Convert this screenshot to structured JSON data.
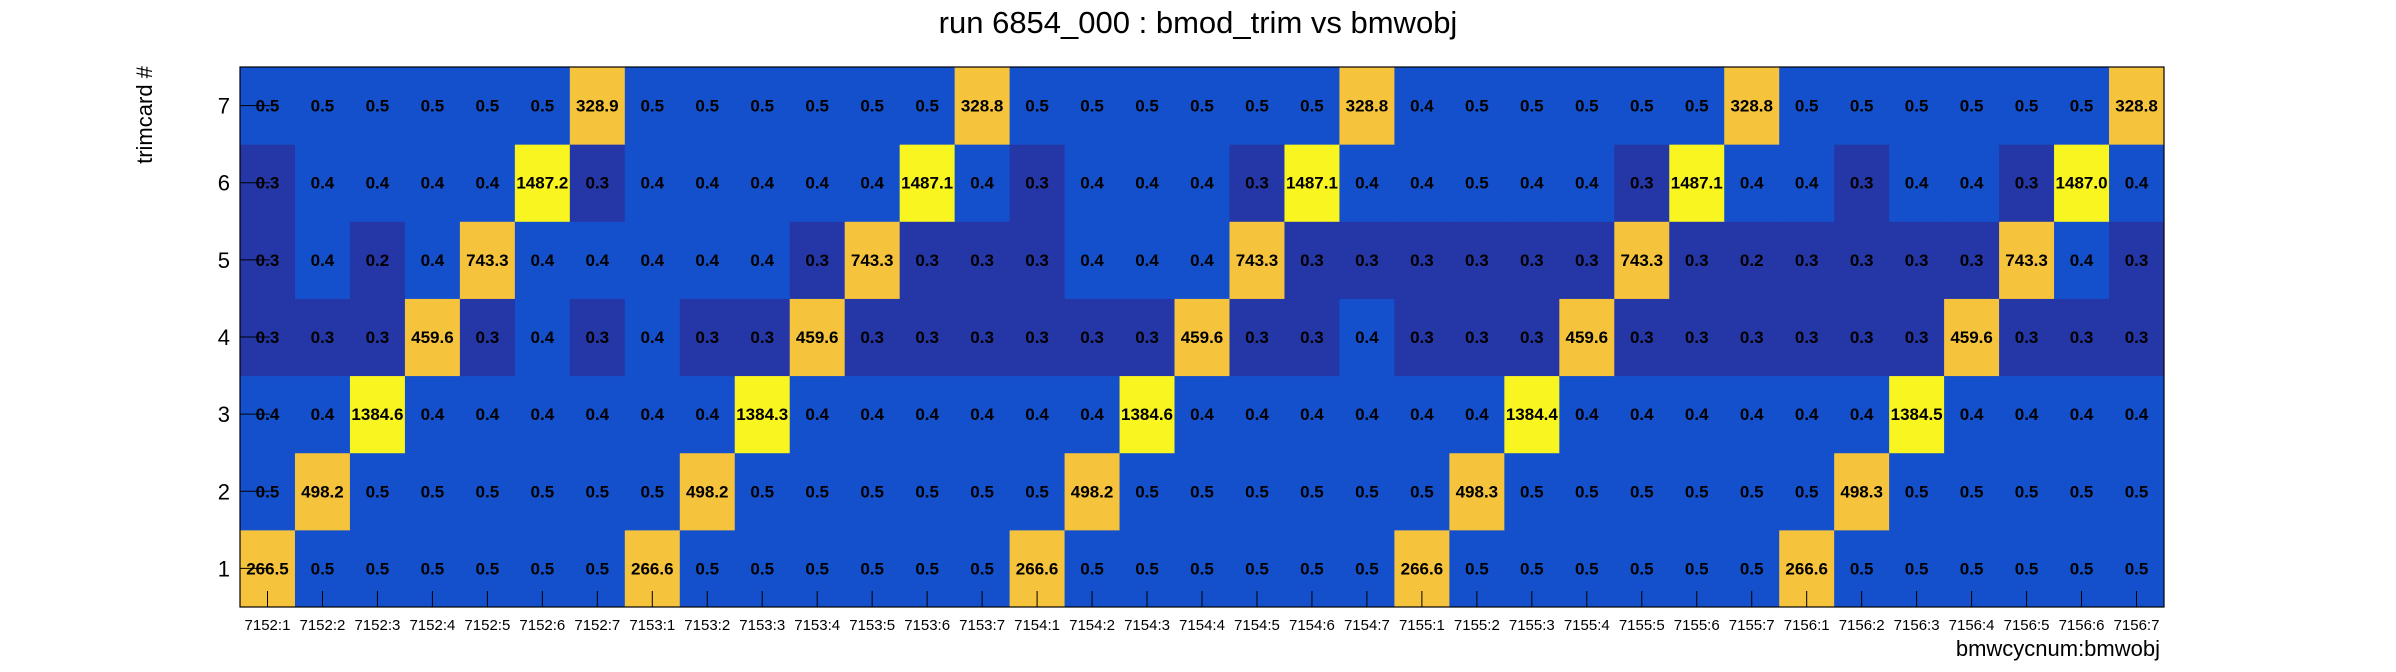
{
  "chart_data": {
    "type": "heatmap",
    "title": "run 6854_000 : bmod_trim vs bmwobj",
    "xlabel": "bmwcycnum:bmwobj",
    "ylabel": "trimcard #",
    "x_categories": [
      "7152:1",
      "7152:2",
      "7152:3",
      "7152:4",
      "7152:5",
      "7152:6",
      "7152:7",
      "7153:1",
      "7153:2",
      "7153:3",
      "7153:4",
      "7153:5",
      "7153:6",
      "7153:7",
      "7154:1",
      "7154:2",
      "7154:3",
      "7154:4",
      "7154:5",
      "7154:6",
      "7154:7",
      "7155:1",
      "7155:2",
      "7155:3",
      "7155:4",
      "7155:5",
      "7155:6",
      "7155:7",
      "7156:1",
      "7156:2",
      "7156:3",
      "7156:4",
      "7156:5",
      "7156:6",
      "7156:7"
    ],
    "y_categories": [
      "1",
      "2",
      "3",
      "4",
      "5",
      "6",
      "7"
    ],
    "values": [
      [
        "266.5",
        "0.5",
        "0.5",
        "0.5",
        "0.5",
        "0.5",
        "0.5",
        "266.6",
        "0.5",
        "0.5",
        "0.5",
        "0.5",
        "0.5",
        "0.5",
        "266.6",
        "0.5",
        "0.5",
        "0.5",
        "0.5",
        "0.5",
        "0.5",
        "266.6",
        "0.5",
        "0.5",
        "0.5",
        "0.5",
        "0.5",
        "0.5",
        "266.6",
        "0.5",
        "0.5",
        "0.5",
        "0.5",
        "0.5",
        "0.5"
      ],
      [
        "0.5",
        "498.2",
        "0.5",
        "0.5",
        "0.5",
        "0.5",
        "0.5",
        "0.5",
        "498.2",
        "0.5",
        "0.5",
        "0.5",
        "0.5",
        "0.5",
        "0.5",
        "498.2",
        "0.5",
        "0.5",
        "0.5",
        "0.5",
        "0.5",
        "0.5",
        "498.3",
        "0.5",
        "0.5",
        "0.5",
        "0.5",
        "0.5",
        "0.5",
        "498.3",
        "0.5",
        "0.5",
        "0.5",
        "0.5",
        "0.5"
      ],
      [
        "0.4",
        "0.4",
        "1384.6",
        "0.4",
        "0.4",
        "0.4",
        "0.4",
        "0.4",
        "0.4",
        "1384.3",
        "0.4",
        "0.4",
        "0.4",
        "0.4",
        "0.4",
        "0.4",
        "1384.6",
        "0.4",
        "0.4",
        "0.4",
        "0.4",
        "0.4",
        "0.4",
        "1384.4",
        "0.4",
        "0.4",
        "0.4",
        "0.4",
        "0.4",
        "0.4",
        "1384.5",
        "0.4",
        "0.4",
        "0.4",
        "0.4"
      ],
      [
        "0.3",
        "0.3",
        "0.3",
        "459.6",
        "0.3",
        "0.4",
        "0.3",
        "0.4",
        "0.3",
        "0.3",
        "459.6",
        "0.3",
        "0.3",
        "0.3",
        "0.3",
        "0.3",
        "0.3",
        "459.6",
        "0.3",
        "0.3",
        "0.4",
        "0.3",
        "0.3",
        "0.3",
        "459.6",
        "0.3",
        "0.3",
        "0.3",
        "0.3",
        "0.3",
        "0.3",
        "459.6",
        "0.3",
        "0.3",
        "0.3"
      ],
      [
        "0.3",
        "0.4",
        "0.2",
        "0.4",
        "743.3",
        "0.4",
        "0.4",
        "0.4",
        "0.4",
        "0.4",
        "0.3",
        "743.3",
        "0.3",
        "0.3",
        "0.3",
        "0.4",
        "0.4",
        "0.4",
        "743.3",
        "0.3",
        "0.3",
        "0.3",
        "0.3",
        "0.3",
        "0.3",
        "743.3",
        "0.3",
        "0.2",
        "0.3",
        "0.3",
        "0.3",
        "0.3",
        "743.3",
        "0.4",
        "0.3"
      ],
      [
        "0.3",
        "0.4",
        "0.4",
        "0.4",
        "0.4",
        "1487.2",
        "0.3",
        "0.4",
        "0.4",
        "0.4",
        "0.4",
        "0.4",
        "1487.1",
        "0.4",
        "0.3",
        "0.4",
        "0.4",
        "0.4",
        "0.3",
        "1487.1",
        "0.4",
        "0.4",
        "0.5",
        "0.4",
        "0.4",
        "0.3",
        "1487.1",
        "0.4",
        "0.4",
        "0.3",
        "0.4",
        "0.4",
        "0.3",
        "1487.0",
        "0.4"
      ],
      [
        "0.5",
        "0.5",
        "0.5",
        "0.5",
        "0.5",
        "0.5",
        "328.9",
        "0.5",
        "0.5",
        "0.5",
        "0.5",
        "0.5",
        "0.5",
        "328.8",
        "0.5",
        "0.5",
        "0.5",
        "0.5",
        "0.5",
        "0.5",
        "328.8",
        "0.4",
        "0.5",
        "0.5",
        "0.5",
        "0.5",
        "0.5",
        "328.8",
        "0.5",
        "0.5",
        "0.5",
        "0.5",
        "0.5",
        "0.5",
        "328.8"
      ]
    ],
    "colors": {
      "low": "#2536a6",
      "mid": "#1450cc",
      "high_orange": "#f6c43c",
      "high_yellow": "#f9f520"
    },
    "legend": "none"
  }
}
